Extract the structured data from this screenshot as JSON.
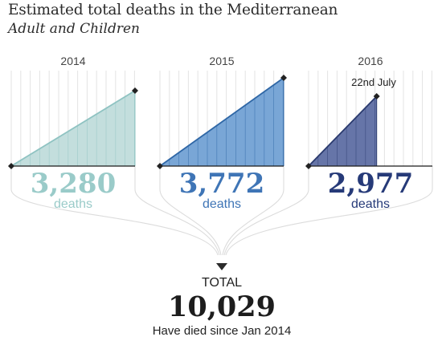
{
  "title": "Estimated total deaths in the Mediterranean",
  "subtitle": "Adult and Children",
  "chart_data": {
    "type": "area",
    "panels": [
      {
        "year": "2014",
        "value": "3,280",
        "label": "deaths",
        "progress": 1.0,
        "fill": "#c3dedd",
        "line": "#8fc3c2",
        "text_color": "#9acbc9",
        "annotation": ""
      },
      {
        "year": "2015",
        "value": "3,772",
        "label": "deaths",
        "progress": 1.0,
        "fill": "#79a6d6",
        "line": "#2f67a6",
        "text_color": "#3f75b6",
        "annotation": ""
      },
      {
        "year": "2016",
        "value": "2,977",
        "label": "deaths",
        "progress": 0.55,
        "fill": "#6675a8",
        "line": "#2a3a6e",
        "text_color": "#263a78",
        "annotation": "22nd July"
      }
    ]
  },
  "total": {
    "label": "TOTAL",
    "value": "10,029",
    "note": "Have died since Jan 2014"
  }
}
